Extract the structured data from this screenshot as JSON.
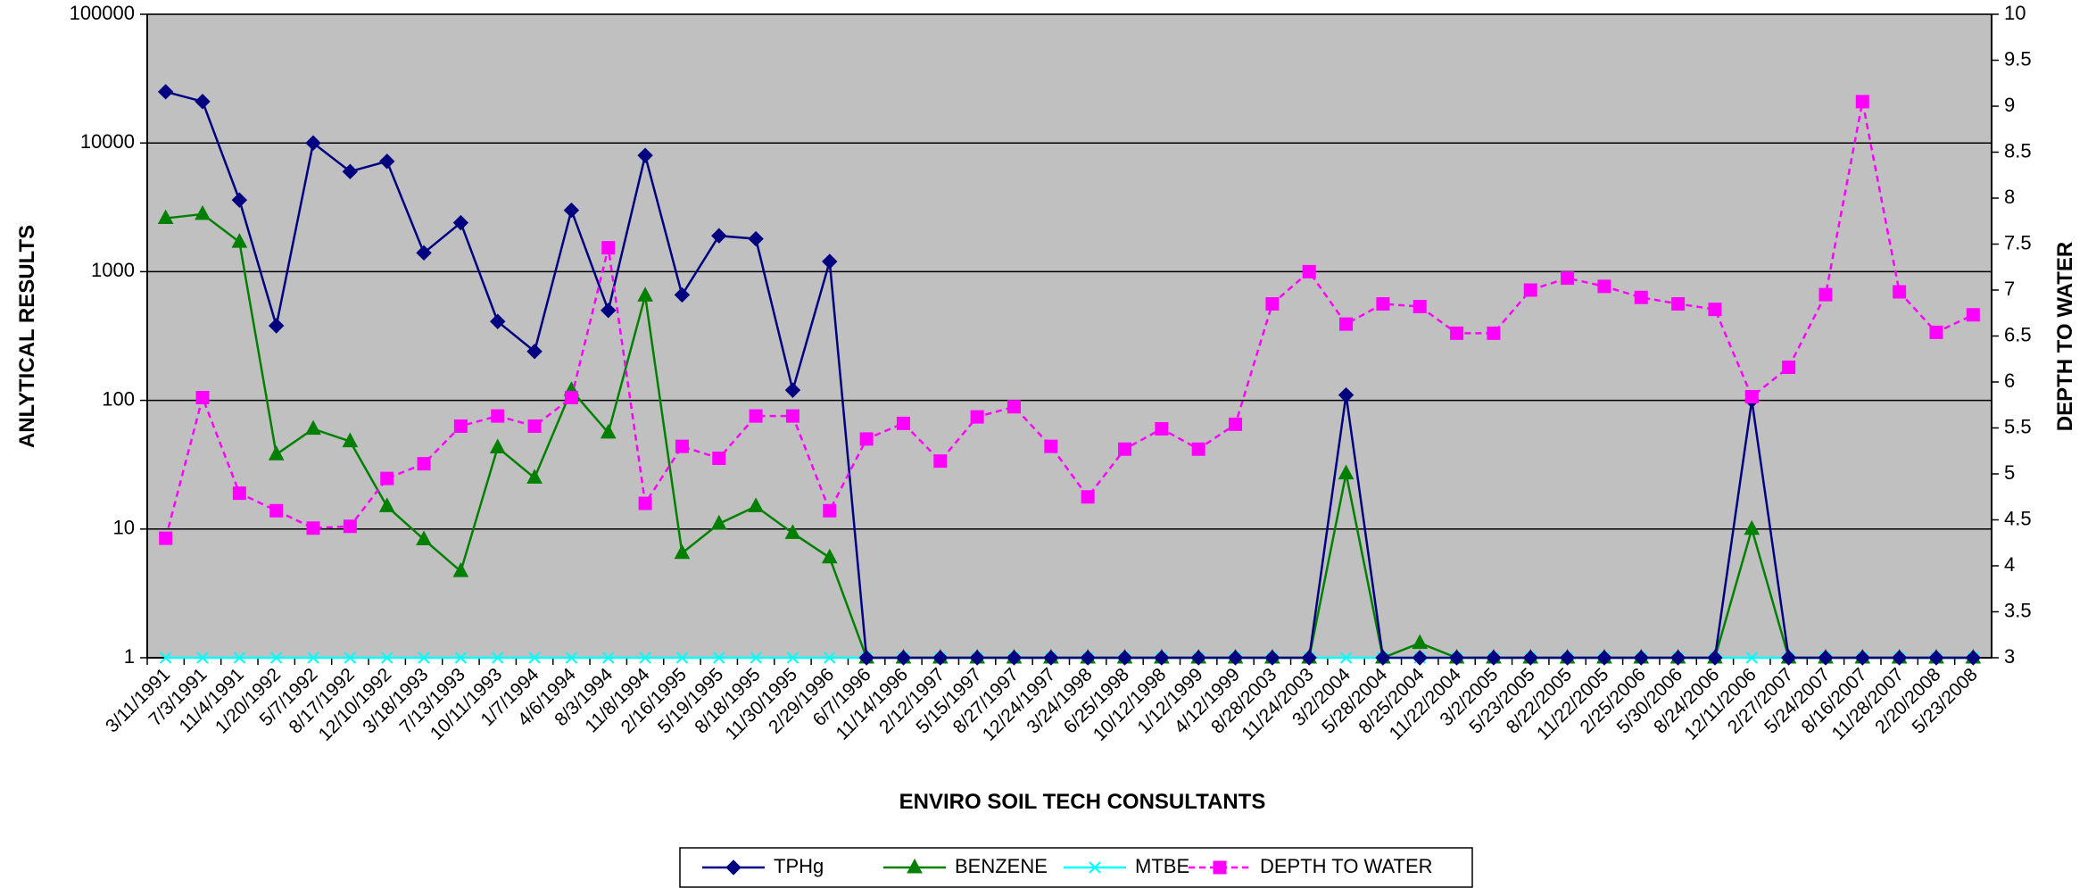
{
  "chart_data": {
    "type": "line",
    "x_label": "ENVIRO SOIL TECH CONSULTANTS",
    "y_label": "ANLYTICAL RESULTS",
    "y2_label": "DEPTH TO WATER",
    "log_y": true,
    "grid": true,
    "legend": "bottom",
    "background": "#c0c0c0",
    "categories": [
      "3/11/1991",
      "7/3/1991",
      "11/4/1991",
      "1/20/1992",
      "5/7/1992",
      "8/17/1992",
      "12/10/1992",
      "3/18/1993",
      "7/13/1993",
      "10/11/1993",
      "1/7/1994",
      "4/6/1994",
      "8/3/1994",
      "11/8/1994",
      "2/16/1995",
      "5/19/1995",
      "8/18/1995",
      "11/30/1995",
      "2/29/1996",
      "6/7/1996",
      "11/14/1996",
      "2/12/1997",
      "5/15/1997",
      "8/27/1997",
      "12/24/1997",
      "3/24/1998",
      "6/25/1998",
      "10/12/1998",
      "1/12/1999",
      "4/12/1999",
      "8/28/2003",
      "11/24/2003",
      "3/2/2004",
      "5/28/2004",
      "8/25/2004",
      "11/22/2004",
      "3/2/2005",
      "5/23/2005",
      "8/22/2005",
      "11/22/2005",
      "2/25/2006",
      "5/30/2006",
      "8/24/2006",
      "12/11/2006",
      "2/27/2007",
      "5/24/2007",
      "8/16/2007",
      "11/28/2007",
      "2/20/2008",
      "5/23/2008"
    ],
    "ylim": [
      1,
      100000
    ],
    "yticks": [
      1,
      10,
      100,
      1000,
      10000,
      100000
    ],
    "y2lim": [
      3,
      10
    ],
    "y2ticks": [
      3,
      3.5,
      4,
      4.5,
      5,
      5.5,
      6,
      6.5,
      7,
      7.5,
      8,
      8.5,
      9,
      9.5,
      10
    ],
    "series": [
      {
        "name": "TPHg",
        "color": "#000080",
        "marker": "diamond",
        "dashed": false,
        "values": [
          25000,
          21000,
          3600,
          380,
          10000,
          6000,
          7200,
          1400,
          2400,
          410,
          240,
          3000,
          500,
          8000,
          660,
          1900,
          1800,
          120,
          1200,
          1,
          1,
          1,
          1,
          1,
          1,
          1,
          1,
          1,
          1,
          1,
          1,
          1,
          110,
          1,
          1,
          1,
          1,
          1,
          1,
          1,
          1,
          1,
          1,
          100,
          1,
          1,
          1,
          1,
          1,
          1
        ]
      },
      {
        "name": "BENZENE",
        "color": "#008000",
        "marker": "triangle",
        "dashed": false,
        "values": [
          2600,
          2800,
          1700,
          38,
          60,
          48,
          15,
          8.3,
          4.7,
          43,
          25,
          120,
          56,
          650,
          6.5,
          11,
          15,
          9.3,
          6,
          1,
          1,
          1,
          1,
          1,
          1,
          1,
          1,
          1,
          1,
          1,
          1,
          1,
          27,
          1,
          1.3,
          1,
          1,
          1,
          1,
          1,
          1,
          1,
          1,
          10,
          1,
          1,
          1,
          1,
          1,
          1
        ]
      },
      {
        "name": "MTBE",
        "color": "#00ffff",
        "marker": "x",
        "dashed": false,
        "values": [
          1,
          1,
          1,
          1,
          1,
          1,
          1,
          1,
          1,
          1,
          1,
          1,
          1,
          1,
          1,
          1,
          1,
          1,
          1,
          1,
          1,
          1,
          1,
          1,
          1,
          1,
          1,
          1,
          1,
          1,
          1,
          1,
          1,
          1,
          1,
          1,
          1,
          1,
          1,
          1,
          1,
          1,
          1,
          1,
          1,
          1,
          1,
          1,
          1,
          1
        ]
      },
      {
        "name": "DEPTH TO WATER",
        "color": "#ff00ff",
        "marker": "square",
        "dashed": true,
        "axis": "y2",
        "values": [
          4.3,
          5.83,
          4.79,
          4.6,
          4.41,
          4.43,
          4.95,
          5.11,
          5.52,
          5.63,
          5.52,
          5.83,
          7.46,
          4.68,
          5.3,
          5.17,
          5.63,
          5.63,
          4.6,
          5.38,
          5.55,
          5.14,
          5.62,
          5.73,
          5.3,
          4.75,
          5.27,
          5.49,
          5.27,
          5.54,
          6.85,
          7.2,
          6.63,
          6.85,
          6.82,
          6.53,
          6.53,
          7.0,
          7.13,
          7.04,
          6.92,
          6.85,
          6.79,
          5.84,
          6.16,
          6.95,
          9.05,
          6.98,
          6.54,
          6.73
        ]
      }
    ]
  }
}
